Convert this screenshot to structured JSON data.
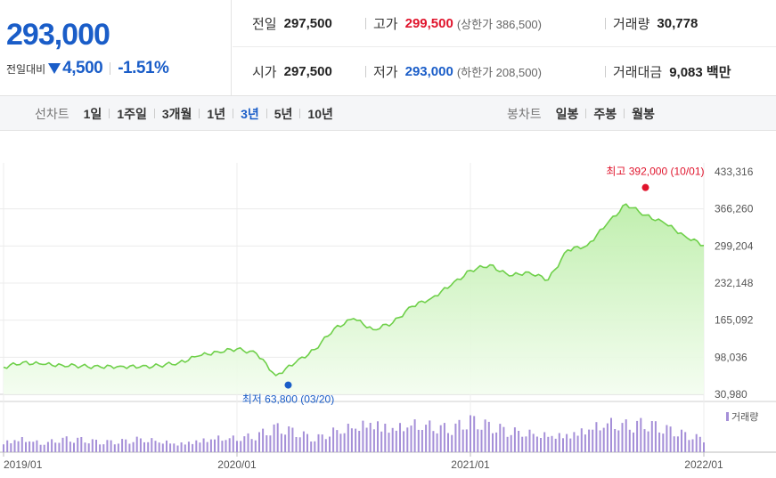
{
  "summary": {
    "price": "293,000",
    "change_label": "전일대비",
    "change_amount": "4,500",
    "change_pct": "-1.51%",
    "prev_close_label": "전일",
    "prev_close": "297,500",
    "open_label": "시가",
    "open": "297,500",
    "high_label": "고가",
    "high": "299,500",
    "upper_limit": "(상한가 386,500)",
    "low_label": "저가",
    "low": "293,000",
    "lower_limit": "(하한가 208,500)",
    "volume_label": "거래량",
    "volume": "30,778",
    "amount_label": "거래대금",
    "amount": "9,083 백만"
  },
  "tabs": {
    "line_title": "선차트",
    "line_items": [
      "1일",
      "1주일",
      "3개월",
      "1년",
      "3년",
      "5년",
      "10년"
    ],
    "line_active": "3년",
    "candle_title": "봉차트",
    "candle_items": [
      "일봉",
      "주봉",
      "월봉"
    ]
  },
  "colors": {
    "accent_blue": "#1a5dc8",
    "accent_red": "#e0142c",
    "line_green": "#6fd04a",
    "volume_purple": "#a58fd8"
  },
  "chart_data": {
    "type": "area",
    "y_ticks": [
      433316,
      366260,
      299204,
      232148,
      165092,
      98036,
      30980
    ],
    "y_tick_labels": [
      "433,316",
      "366,260",
      "299,204",
      "232,148",
      "165,092",
      "98,036",
      "30,980"
    ],
    "ylim": [
      30980,
      433316
    ],
    "x_ticks": [
      "2019/01",
      "2020/01",
      "2021/01",
      "2022/01"
    ],
    "grid": true,
    "volume_legend": "거래량",
    "max_annotation": "최고 392,000 (10/01)",
    "min_annotation": "최저 63,800 (03/20)",
    "max_point": {
      "x": "2021/10/01",
      "y": 392000
    },
    "min_point": {
      "x": "2020/03/20",
      "y": 63800
    },
    "series": [
      {
        "x": [
          "2019/01",
          "2019/02",
          "2019/03",
          "2019/04",
          "2019/05",
          "2019/06",
          "2019/07",
          "2019/08",
          "2019/09",
          "2019/10",
          "2019/11",
          "2019/12",
          "2020/01",
          "2020/02",
          "2020/03",
          "2020/04",
          "2020/05",
          "2020/06",
          "2020/07",
          "2020/08",
          "2020/09",
          "2020/10",
          "2020/11",
          "2020/12",
          "2021/01",
          "2021/02",
          "2021/03",
          "2021/04",
          "2021/05",
          "2021/06",
          "2021/07",
          "2021/08",
          "2021/09",
          "2021/10",
          "2021/11",
          "2021/12",
          "2022/01"
        ],
        "values": [
          80000,
          89000,
          85000,
          84000,
          82000,
          80000,
          82000,
          80000,
          83000,
          88000,
          100000,
          108000,
          113000,
          105000,
          65000,
          88000,
          112000,
          150000,
          168000,
          148000,
          160000,
          190000,
          205000,
          228000,
          255000,
          265000,
          245000,
          252000,
          238000,
          292000,
          300000,
          338000,
          375000,
          355000,
          340000,
          318000,
          300000
        ]
      }
    ],
    "volume": [
      25,
      32,
      20,
      30,
      28,
      22,
      24,
      30,
      26,
      20,
      28,
      34,
      32,
      38,
      55,
      45,
      30,
      48,
      60,
      72,
      58,
      66,
      60,
      52,
      70,
      58,
      48,
      44,
      40,
      42,
      55,
      68,
      62,
      64,
      52,
      40,
      30
    ]
  }
}
